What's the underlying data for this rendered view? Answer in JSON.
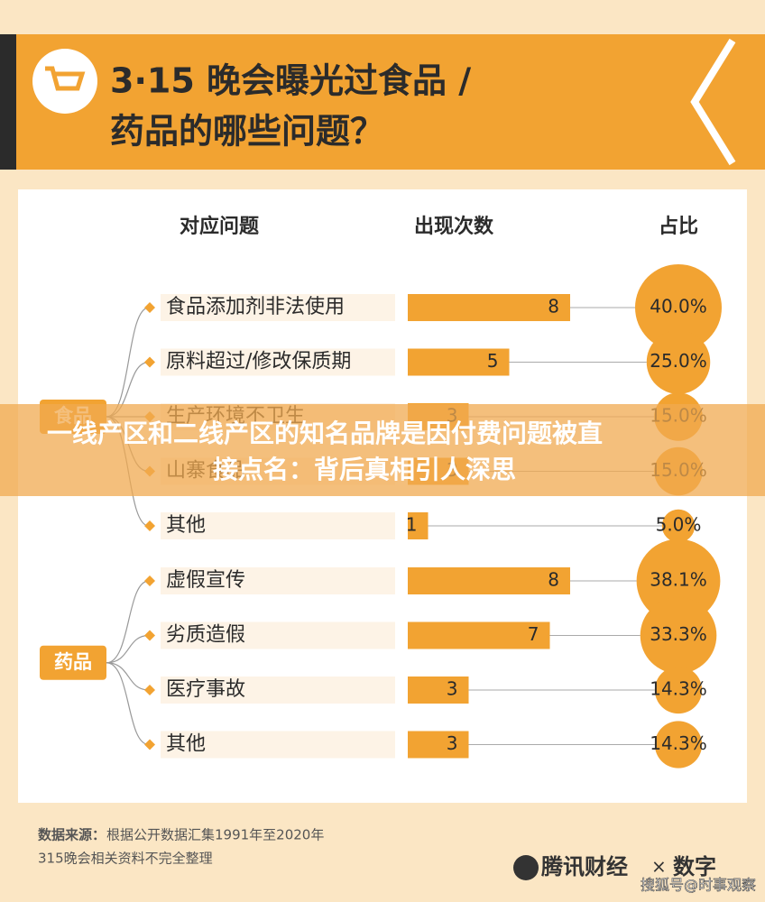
{
  "chart_data": {
    "type": "bar",
    "title_lines": [
      "3·15 晚会曝光过食品 /",
      "药品的哪些问题？"
    ],
    "headers": [
      "对应问题",
      "出现次数",
      "占比"
    ],
    "groups": [
      {
        "name": "食品",
        "items": [
          {
            "label": "食品添加剂非法使用",
            "value": 8,
            "share": 40.0,
            "share_label": "40.0%"
          },
          {
            "label": "原料超过/修改保质期",
            "value": 5,
            "share": 25.0,
            "share_label": "25.0%"
          },
          {
            "label": "生产环境不卫生",
            "value": 3,
            "share": 15.0,
            "share_label": "15.0%"
          },
          {
            "label": "山寨食品",
            "value": 3,
            "share": 15.0,
            "share_label": "15.0%"
          },
          {
            "label": "其他",
            "value": 1,
            "share": 5.0,
            "share_label": "5.0%"
          }
        ]
      },
      {
        "name": "药品",
        "items": [
          {
            "label": "虚假宣传",
            "value": 8,
            "share": 38.1,
            "share_label": "38.1%"
          },
          {
            "label": "劣质造假",
            "value": 7,
            "share": 33.3,
            "share_label": "33.3%"
          },
          {
            "label": "医疗事故",
            "value": 3,
            "share": 14.3,
            "share_label": "14.3%"
          },
          {
            "label": "其他",
            "value": 3,
            "share": 14.3,
            "share_label": "14.3%"
          }
        ]
      }
    ],
    "color": "#f2a332",
    "overlay_lines": [
      "一线产区和二线产区的知名品牌是因付费问题被直",
      "接点名：背后真相引人深思"
    ],
    "source_label": "数据来源：",
    "source_lines": [
      "根据公开数据汇集1991年至2020年",
      "315晚会相关资料不完全整理"
    ],
    "logo": [
      "腾讯财经",
      "×",
      "数字"
    ],
    "watermark": "搜狐号@时事观察"
  }
}
